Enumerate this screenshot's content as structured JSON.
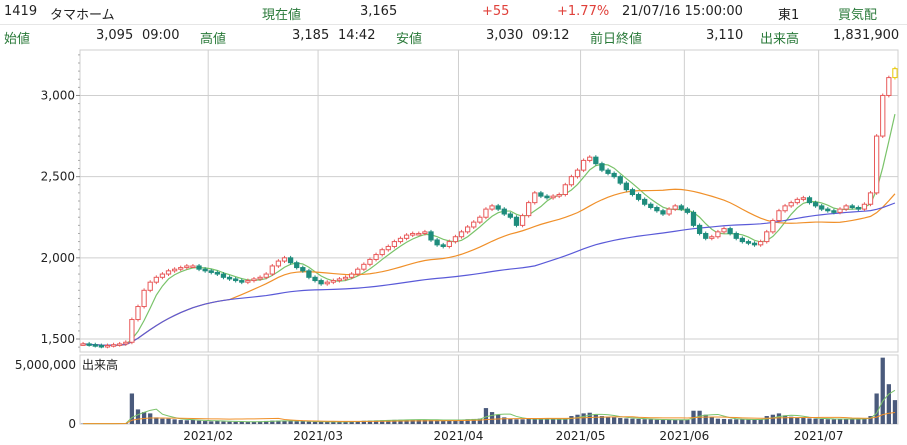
{
  "header": {
    "code": "1419",
    "name": "タマホーム",
    "current_label": "現在値",
    "current": "3,165",
    "change": "+55",
    "change_pct": "+1.77%",
    "datetime": "21/07/16  15:00:00",
    "market": "東1",
    "bid_ask_label": "買気配",
    "open_label": "始値",
    "open": "3,095",
    "open_time": "09:00",
    "high_label": "高値",
    "high": "3,185",
    "high_time": "14:42",
    "low_label": "安値",
    "low": "3,030",
    "low_time": "09:12",
    "prev_close_label": "前日終値",
    "prev_close": "3,110",
    "volume_label": "出来高",
    "volume": "1,831,900"
  },
  "colors": {
    "up_candle": "#e85a5a",
    "down_candle": "#1e8c7c",
    "ma_short": "#7ac36a",
    "ma_mid": "#f0902a",
    "ma_long": "#5a5ad8",
    "volume_bar": "#4a5a7c",
    "last_candle": "#e8c800",
    "grid": "#cfcfcf"
  },
  "chart_data": {
    "type": "candlestick",
    "price_axis": {
      "ylim": [
        1420,
        3280
      ],
      "ticks": [
        1500,
        2000,
        2500,
        3000
      ],
      "tick_labels": [
        "1,500",
        "2,000",
        "2,500",
        "3,000"
      ]
    },
    "volume_axis": {
      "ylim": [
        0,
        5200000
      ],
      "tick_labels": [
        "5,000,000"
      ],
      "label": "出来高"
    },
    "x_ticks": [
      {
        "index": 21,
        "label": "2021/02"
      },
      {
        "index": 39,
        "label": "2021/03"
      },
      {
        "index": 62,
        "label": "2021/04"
      },
      {
        "index": 82,
        "label": "2021/05"
      },
      {
        "index": 99,
        "label": "2021/06"
      },
      {
        "index": 121,
        "label": "2021/07"
      }
    ],
    "closes": [
      1470,
      1465,
      1460,
      1455,
      1460,
      1465,
      1470,
      1480,
      1620,
      1700,
      1800,
      1850,
      1880,
      1900,
      1920,
      1930,
      1940,
      1950,
      1950,
      1930,
      1920,
      1910,
      1900,
      1880,
      1870,
      1860,
      1850,
      1860,
      1870,
      1880,
      1900,
      1950,
      1980,
      2000,
      1970,
      1940,
      1920,
      1880,
      1860,
      1840,
      1850,
      1860,
      1870,
      1880,
      1900,
      1930,
      1960,
      1990,
      2020,
      2050,
      2070,
      2100,
      2120,
      2140,
      2150,
      2150,
      2160,
      2110,
      2080,
      2070,
      2100,
      2130,
      2160,
      2190,
      2220,
      2250,
      2300,
      2320,
      2300,
      2270,
      2250,
      2200,
      2260,
      2340,
      2400,
      2380,
      2370,
      2380,
      2390,
      2450,
      2500,
      2540,
      2600,
      2620,
      2580,
      2540,
      2520,
      2500,
      2460,
      2420,
      2390,
      2360,
      2330,
      2310,
      2290,
      2270,
      2300,
      2320,
      2300,
      2280,
      2200,
      2150,
      2120,
      2130,
      2160,
      2180,
      2150,
      2120,
      2100,
      2090,
      2080,
      2100,
      2160,
      2230,
      2290,
      2320,
      2340,
      2360,
      2370,
      2340,
      2320,
      2300,
      2290,
      2280,
      2300,
      2320,
      2310,
      2300,
      2330,
      2400,
      2750,
      3000,
      3110,
      3165
    ],
    "volumes": [
      30000,
      25000,
      20000,
      40000,
      35000,
      30000,
      40000,
      50000,
      2300000,
      1100000,
      900000,
      800000,
      500000,
      400000,
      400000,
      350000,
      300000,
      280000,
      300000,
      250000,
      220000,
      200000,
      260000,
      180000,
      170000,
      160000,
      150000,
      170000,
      180000,
      200000,
      230000,
      250000,
      260000,
      240000,
      220000,
      200000,
      190000,
      180000,
      170000,
      160000,
      150000,
      160000,
      170000,
      180000,
      200000,
      220000,
      240000,
      260000,
      270000,
      280000,
      300000,
      310000,
      320000,
      330000,
      340000,
      330000,
      320000,
      300000,
      290000,
      280000,
      300000,
      320000,
      340000,
      360000,
      380000,
      400000,
      1200000,
      900000,
      700000,
      500000,
      400000,
      350000,
      350000,
      380000,
      400000,
      380000,
      360000,
      350000,
      340000,
      400000,
      600000,
      700000,
      800000,
      850000,
      700000,
      600000,
      550000,
      500000,
      450000,
      420000,
      400000,
      380000,
      360000,
      340000,
      320000,
      300000,
      320000,
      340000,
      320000,
      300000,
      1000000,
      1000000,
      700000,
      500000,
      400000,
      380000,
      360000,
      350000,
      340000,
      330000,
      320000,
      340000,
      600000,
      700000,
      800000,
      650000,
      550000,
      480000,
      450000,
      420000,
      400000,
      380000,
      360000,
      350000,
      380000,
      400000,
      380000,
      360000,
      400000,
      600000,
      2300000,
      5000000,
      3000000,
      1800000
    ]
  }
}
